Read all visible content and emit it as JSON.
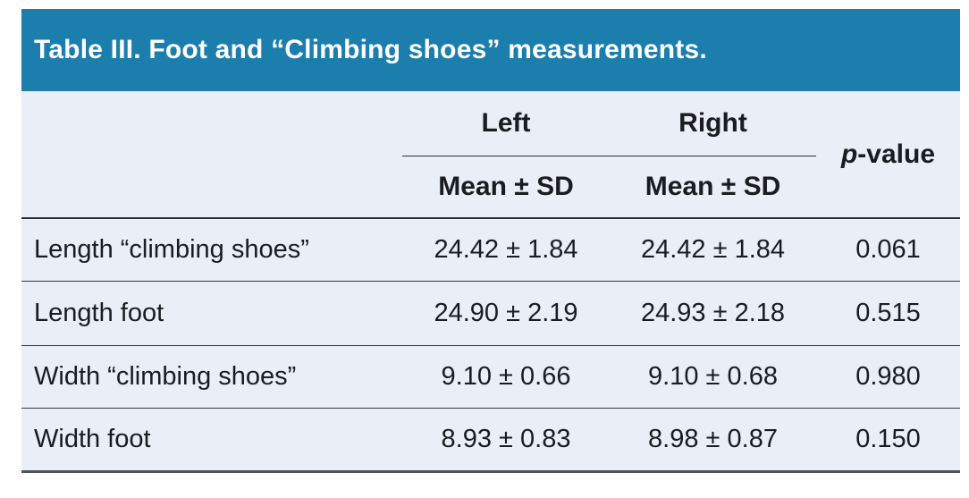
{
  "table": {
    "title": "Table III. Foot and “Climbing shoes” measurements.",
    "header": {
      "group_left": "Left",
      "group_right": "Right",
      "sub_left": "Mean ± SD",
      "sub_right": "Mean ± SD",
      "p_italic": "p",
      "p_rest": "-value"
    },
    "rows": [
      {
        "label": "Length “climbing shoes”",
        "left": "24.42 ± 1.84",
        "right": "24.42 ± 1.84",
        "p": "0.061"
      },
      {
        "label": "Length foot",
        "left": "24.90 ± 2.19",
        "right": "24.93 ± 2.18",
        "p": "0.515"
      },
      {
        "label": "Width “climbing shoes”",
        "left": "9.10 ± 0.66",
        "right": "9.10 ± 0.68",
        "p": "0.980"
      },
      {
        "label": "Width foot",
        "left": "8.93 ± 0.83",
        "right": "8.98 ± 0.87",
        "p": "0.150"
      }
    ],
    "colors": {
      "title_bg": "#1b7ead",
      "title_text": "#ffffff",
      "body_bg": "#e9eef7",
      "text": "#1a1c1f",
      "rule": "#33383e"
    }
  }
}
